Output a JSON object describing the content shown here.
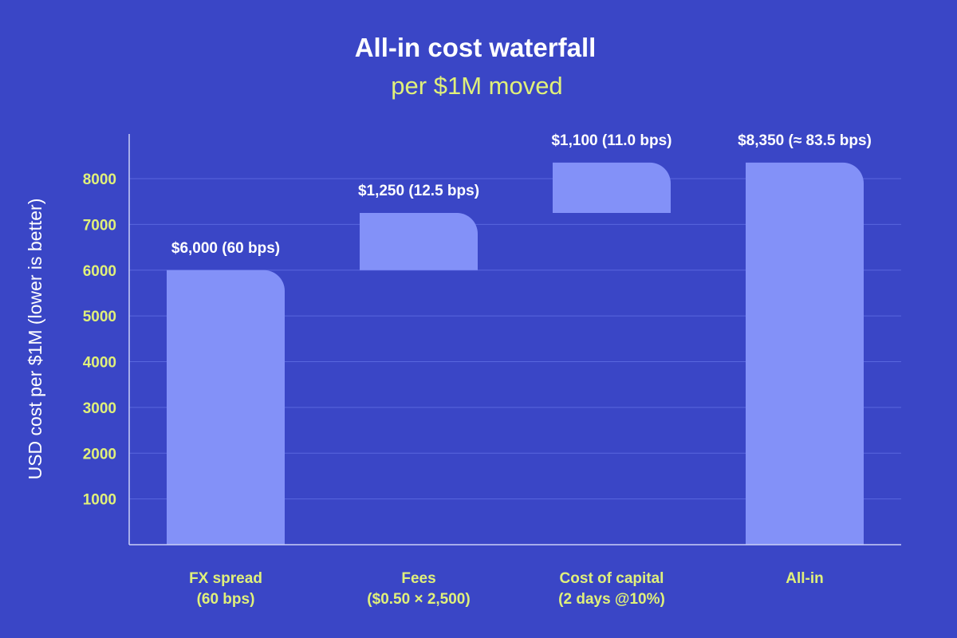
{
  "chart_data": {
    "type": "bar",
    "subtype": "waterfall",
    "title": "All-in cost waterfall",
    "subtitle": "per $1M moved",
    "ylabel": "USD cost per $1M (lower is better)",
    "xlabel": "",
    "ylim": [
      0,
      8700
    ],
    "yticks": [
      1000,
      2000,
      3000,
      4000,
      5000,
      6000,
      7000,
      8000
    ],
    "grid": true,
    "legend": "none",
    "bars": [
      {
        "category": [
          "FX spread",
          "(60 bps)"
        ],
        "start": 0,
        "end": 6000,
        "value": 6000,
        "label": "$6,000 (60 bps)"
      },
      {
        "category": [
          "Fees",
          "($0.50 × 2,500)"
        ],
        "start": 6000,
        "end": 7250,
        "value": 1250,
        "label": "$1,250 (12.5 bps)"
      },
      {
        "category": [
          "Cost of capital",
          "(2 days @10%)"
        ],
        "start": 7250,
        "end": 8350,
        "value": 1100,
        "label": "$1,100 (11.0 bps)"
      },
      {
        "category": [
          "All-in"
        ],
        "start": 0,
        "end": 8350,
        "value": 8350,
        "label": "$8,350 (≈ 83.5 bps)"
      }
    ],
    "colors": {
      "background": "#3a46c6",
      "bar": "#8391f8",
      "tick": "#e0f07a",
      "text": "#ffffff",
      "grid": "#5967de"
    }
  }
}
